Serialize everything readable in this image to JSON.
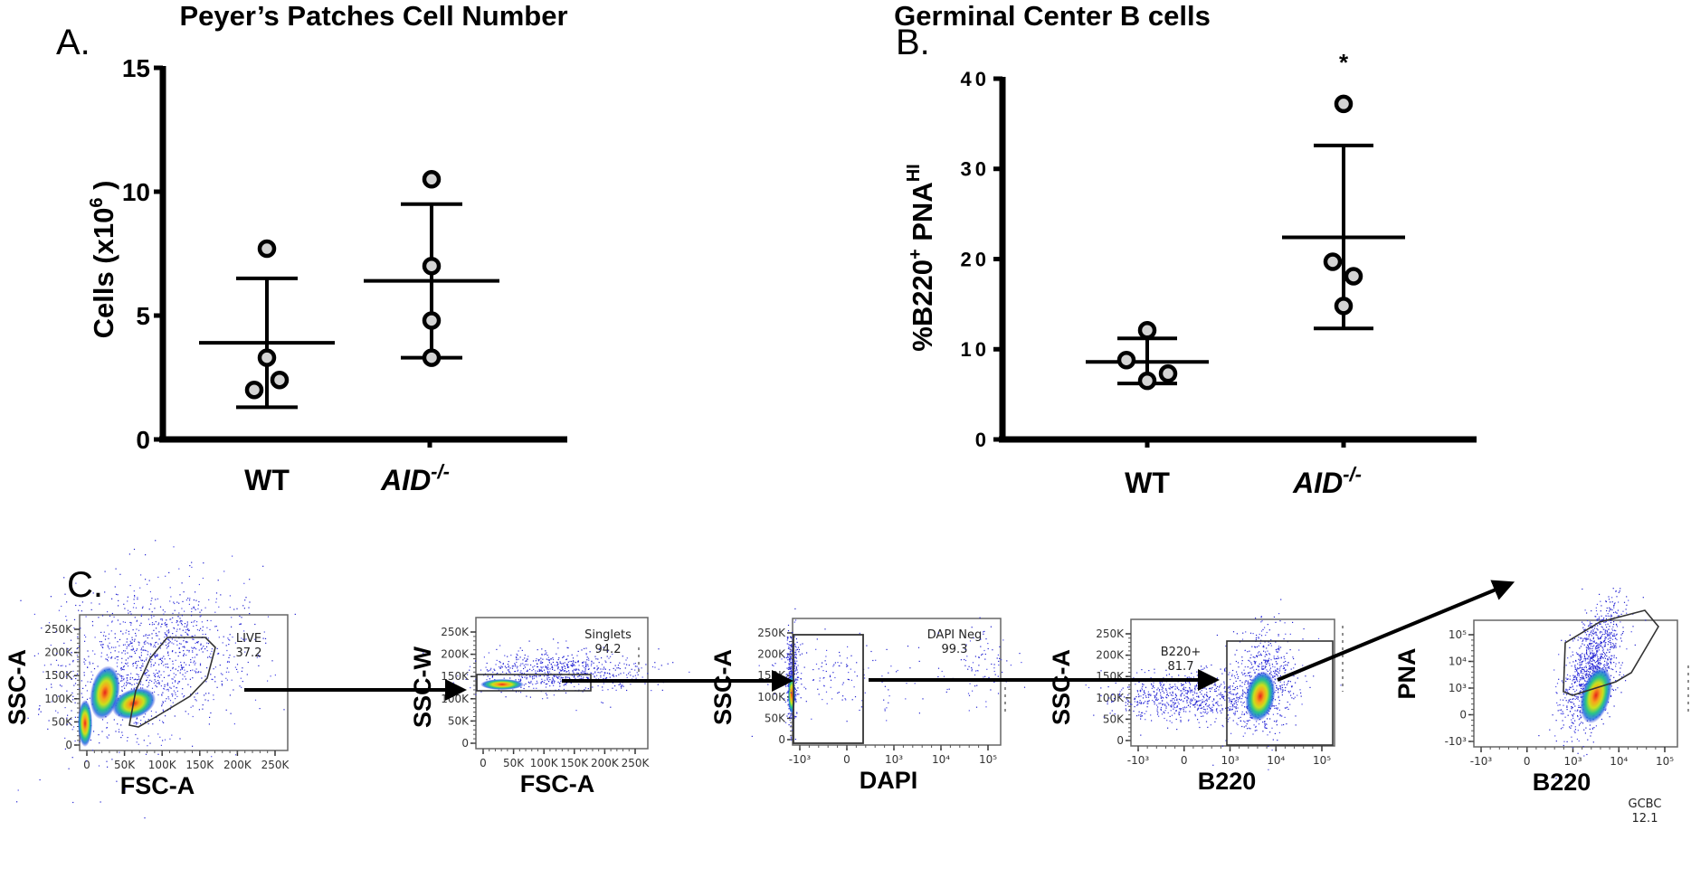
{
  "chart_data": [
    {
      "type": "scatter",
      "panel_label": "A.",
      "title": "Peyer’s Patches Cell Number",
      "ylabel": "Cells (x10",
      "ylabel_sup": "6",
      "ylabel_end": " )",
      "ylim": [
        0,
        15
      ],
      "yticks": [
        "0",
        "5",
        "10",
        "15"
      ],
      "ytick_values": [
        0,
        5,
        10,
        15
      ],
      "categories": [
        "WT",
        "AID"
      ],
      "category_sup": [
        "",
        "-/-"
      ],
      "series": [
        {
          "name": "WT",
          "points": [
            7.7,
            3.3,
            2.4,
            2.0
          ],
          "mean": 3.9,
          "sd_upper": 6.5,
          "sd_lower": 1.3
        },
        {
          "name": "AID-/-",
          "points": [
            10.5,
            7.0,
            4.8,
            3.3
          ],
          "mean": 6.4,
          "sd_upper": 9.5,
          "sd_lower": 3.3
        }
      ],
      "annotations": []
    },
    {
      "type": "scatter",
      "panel_label": "B.",
      "title": "Germinal Center B cells",
      "ylabel": "%B220",
      "ylabel_sup1": "+",
      "ylabel_mid": "PNA",
      "ylabel_sup2": "HI",
      "ylim": [
        0,
        40
      ],
      "yticks": [
        "0",
        "10",
        "20",
        "30",
        "40"
      ],
      "ytick_values": [
        0,
        10,
        20,
        30,
        40
      ],
      "categories": [
        "WT",
        "AID"
      ],
      "category_sup": [
        "",
        "-/-"
      ],
      "series": [
        {
          "name": "WT",
          "points": [
            12.1,
            8.8,
            7.3,
            6.5
          ],
          "mean": 8.6,
          "sd_upper": 11.2,
          "sd_lower": 6.2
        },
        {
          "name": "AID-/-",
          "points": [
            37.2,
            19.7,
            18.1,
            14.8
          ],
          "mean": 22.4,
          "sd_upper": 32.6,
          "sd_lower": 12.3
        }
      ],
      "annotations": [
        "*"
      ]
    }
  ],
  "gating": {
    "panel_label": "C.",
    "plots": [
      {
        "xlabel": "FSC-A",
        "ylabel": "SSC-A",
        "gate_name": "LIVE",
        "gate_value": "37.2",
        "xticks": [
          "0",
          "50K",
          "100K",
          "150K",
          "200K",
          "250K"
        ],
        "yticks": [
          "0",
          "50K",
          "100K",
          "150K",
          "200K",
          "250K"
        ]
      },
      {
        "xlabel": "FSC-A",
        "ylabel": "SSC-W",
        "gate_name": "Singlets",
        "gate_value": "94.2",
        "xticks": [
          "0",
          "50K",
          "100K",
          "150K",
          "200K",
          "250K"
        ],
        "yticks": [
          "0",
          "50K",
          "100K",
          "150K",
          "200K",
          "250K"
        ]
      },
      {
        "xlabel": "DAPI",
        "ylabel": "SSC-A",
        "gate_name": "DAPI Neg",
        "gate_value": "99.3",
        "xticks": [
          "-10³",
          "0",
          "10³",
          "10⁴",
          "10⁵"
        ],
        "yticks": [
          "0",
          "50K",
          "100K",
          "150K",
          "200K",
          "250K"
        ]
      },
      {
        "xlabel": "B220",
        "ylabel": "SSC-A",
        "gate_name": "B220+",
        "gate_value": "81.7",
        "xticks": [
          "-10³",
          "0",
          "10³",
          "10⁴",
          "10⁵"
        ],
        "yticks": [
          "0",
          "50K",
          "100K",
          "150K",
          "200K",
          "250K"
        ]
      },
      {
        "xlabel": "B220",
        "ylabel": "PNA",
        "gate_name": "GCBC",
        "gate_value": "12.1",
        "xticks": [
          "-10³",
          "0",
          "10³",
          "10⁴",
          "10⁵"
        ],
        "yticks": [
          "-10³",
          "0",
          "10³",
          "10⁴",
          "10⁵"
        ]
      }
    ]
  }
}
